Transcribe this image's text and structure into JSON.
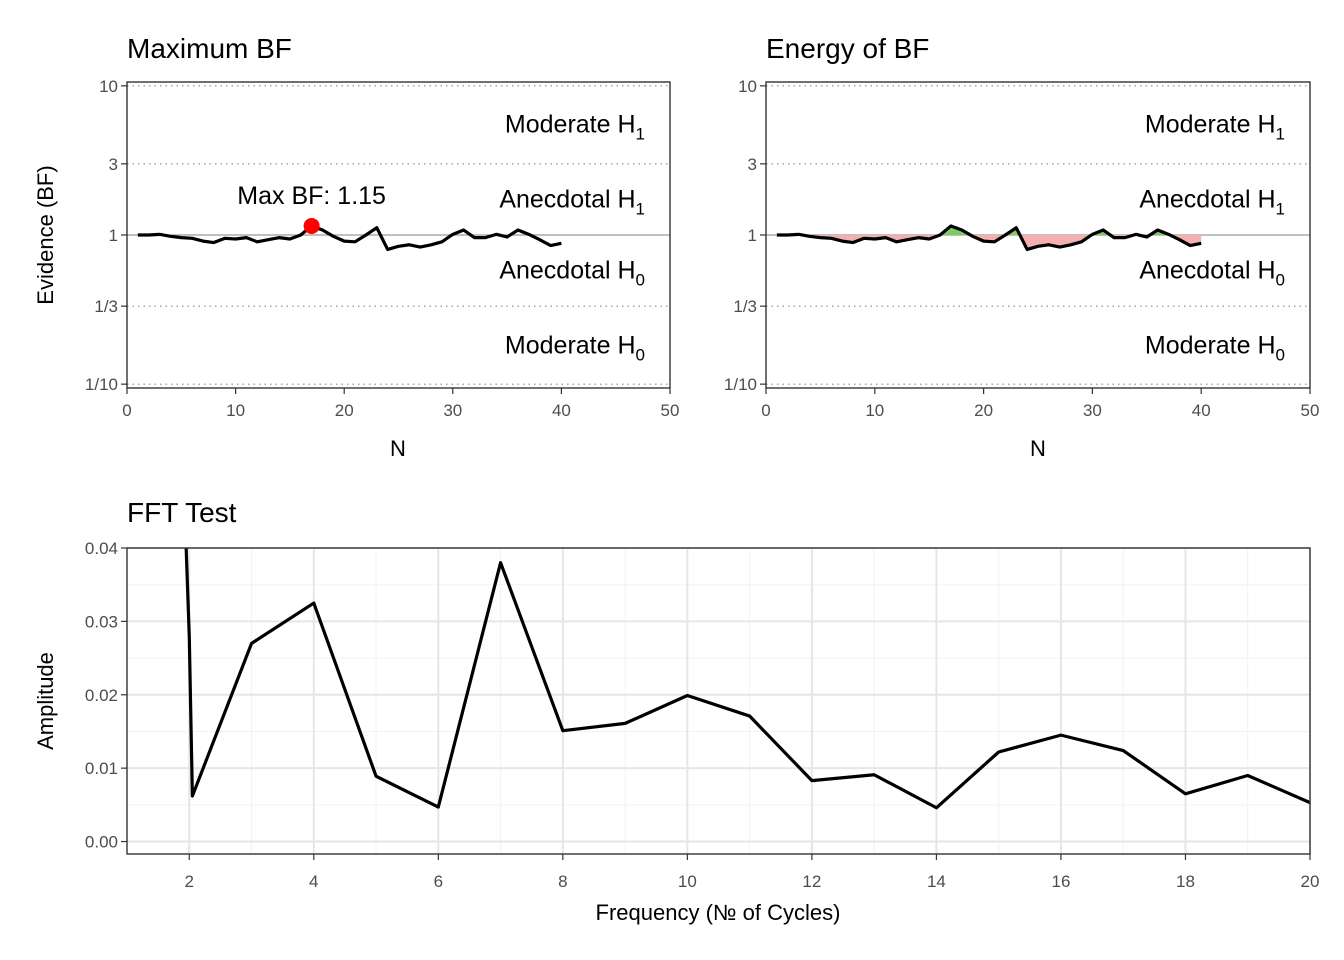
{
  "chart_data": [
    {
      "type": "line",
      "title": "Maximum BF",
      "xlabel": "N",
      "ylabel": "Evidence (BF)",
      "xlim": [
        0,
        50
      ],
      "ylim_log3": [
        -2.15,
        2.15
      ],
      "x_ticks": [
        0,
        10,
        20,
        30,
        40,
        50
      ],
      "y_ticks": [
        {
          "label": "10",
          "value": 10
        },
        {
          "label": "3",
          "value": 3
        },
        {
          "label": "1",
          "value": 1
        },
        {
          "label": "1/3",
          "value": 0.3333
        },
        {
          "label": "1/10",
          "value": 0.1
        }
      ],
      "zones": [
        {
          "main": "Moderate H",
          "sub": "1",
          "value": 5.5
        },
        {
          "main": "Anecdotal H",
          "sub": "1",
          "value": 1.73
        },
        {
          "main": "Anecdotal H",
          "sub": "0",
          "value": 0.577
        },
        {
          "main": "Moderate H",
          "sub": "0",
          "value": 0.182
        }
      ],
      "annotation": {
        "text": "Max BF: 1.15",
        "x": 17,
        "y": 1.15
      },
      "series": [
        {
          "x": [
            1,
            2,
            3,
            4,
            5,
            6,
            7,
            8,
            9,
            10,
            11,
            12,
            13,
            14,
            15,
            16,
            17,
            18,
            19,
            20,
            21,
            22,
            23,
            24,
            25,
            26,
            27,
            28,
            29,
            30,
            31,
            32,
            33,
            34,
            35,
            36,
            37,
            38,
            39,
            40
          ],
          "values": [
            1.0,
            1.0,
            1.01,
            0.98,
            0.96,
            0.95,
            0.91,
            0.89,
            0.95,
            0.94,
            0.96,
            0.9,
            0.93,
            0.96,
            0.94,
            1.0,
            1.15,
            1.08,
            0.98,
            0.91,
            0.9,
            1.0,
            1.12,
            0.8,
            0.84,
            0.86,
            0.83,
            0.86,
            0.9,
            1.01,
            1.08,
            0.96,
            0.96,
            1.01,
            0.97,
            1.08,
            1.01,
            0.93,
            0.85,
            0.88
          ]
        }
      ]
    },
    {
      "type": "area",
      "title": "Energy of BF",
      "xlabel": "N",
      "xlim": [
        0,
        50
      ],
      "ylim_log3": [
        -2.15,
        2.15
      ],
      "x_ticks": [
        0,
        10,
        20,
        30,
        40,
        50
      ],
      "y_ticks": [
        {
          "label": "10",
          "value": 10
        },
        {
          "label": "3",
          "value": 3
        },
        {
          "label": "1",
          "value": 1
        },
        {
          "label": "1/3",
          "value": 0.3333
        },
        {
          "label": "1/10",
          "value": 0.1
        }
      ],
      "zones": [
        {
          "main": "Moderate H",
          "sub": "1",
          "value": 5.5
        },
        {
          "main": "Anecdotal H",
          "sub": "1",
          "value": 1.73
        },
        {
          "main": "Anecdotal H",
          "sub": "0",
          "value": 0.577
        },
        {
          "main": "Moderate H",
          "sub": "0",
          "value": 0.182
        }
      ],
      "fill_above_color": "#7ccd66",
      "fill_below_color": "#f4b0b0",
      "series": [
        {
          "x": [
            1,
            2,
            3,
            4,
            5,
            6,
            7,
            8,
            9,
            10,
            11,
            12,
            13,
            14,
            15,
            16,
            17,
            18,
            19,
            20,
            21,
            22,
            23,
            24,
            25,
            26,
            27,
            28,
            29,
            30,
            31,
            32,
            33,
            34,
            35,
            36,
            37,
            38,
            39,
            40
          ],
          "values": [
            1.0,
            1.0,
            1.01,
            0.98,
            0.96,
            0.95,
            0.91,
            0.89,
            0.95,
            0.94,
            0.96,
            0.9,
            0.93,
            0.96,
            0.94,
            1.0,
            1.15,
            1.08,
            0.98,
            0.91,
            0.9,
            1.0,
            1.12,
            0.8,
            0.84,
            0.86,
            0.83,
            0.86,
            0.9,
            1.01,
            1.08,
            0.96,
            0.96,
            1.01,
            0.97,
            1.08,
            1.01,
            0.93,
            0.85,
            0.88
          ]
        }
      ]
    },
    {
      "type": "line",
      "title": "FFT Test",
      "xlabel": "Frequency (№ of Cycles)",
      "ylabel": "Amplitude",
      "xlim": [
        1,
        20
      ],
      "ylim": [
        -0.0017,
        0.04
      ],
      "x_ticks": [
        2,
        4,
        6,
        8,
        10,
        12,
        14,
        16,
        18,
        20
      ],
      "y_ticks": [
        {
          "label": "0.00",
          "value": 0.0
        },
        {
          "label": "0.01",
          "value": 0.01
        },
        {
          "label": "0.02",
          "value": 0.02
        },
        {
          "label": "0.03",
          "value": 0.03
        },
        {
          "label": "0.04",
          "value": 0.04
        }
      ],
      "series": [
        {
          "x": [
            1.95,
            2,
            2.05,
            3,
            4,
            5,
            6,
            7,
            8,
            9,
            10,
            11,
            12,
            13,
            14,
            15,
            16,
            17,
            18,
            19,
            20
          ],
          "values": [
            0.04,
            0.028,
            0.0062,
            0.027,
            0.0325,
            0.0089,
            0.0047,
            0.038,
            0.0151,
            0.0161,
            0.0199,
            0.0171,
            0.0083,
            0.0091,
            0.0046,
            0.0122,
            0.0145,
            0.0124,
            0.0065,
            0.009,
            0.0053
          ]
        }
      ]
    }
  ]
}
